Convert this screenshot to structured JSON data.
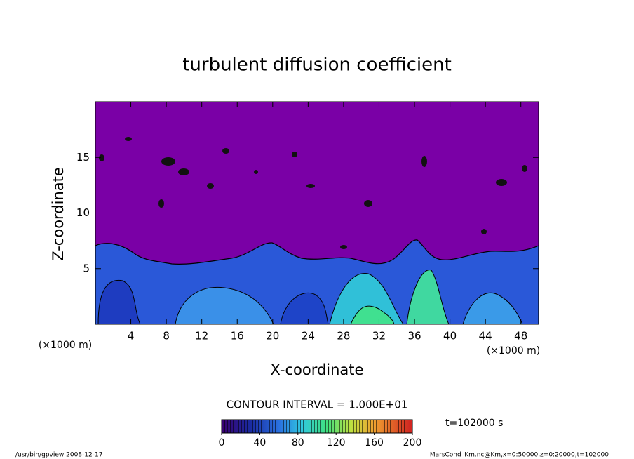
{
  "chart_data": {
    "type": "contour",
    "title": "turbulent diffusion coefficient",
    "x_label": "X-coordinate",
    "y_label": "Z-coordinate",
    "x_unit": "(×1000 m)",
    "y_unit": "(×1000 m)",
    "xlim": [
      0,
      50
    ],
    "xticks": [
      4,
      8,
      12,
      16,
      20,
      24,
      28,
      32,
      36,
      40,
      44,
      48
    ],
    "ylim": [
      0,
      20
    ],
    "yticks": [
      5,
      10,
      15
    ],
    "contour_interval": "CONTOUR INTERVAL = 1.000E+01",
    "time_label": "t=102000 s",
    "colorbar": {
      "lim": [
        0,
        200
      ],
      "ticks": [
        0,
        40,
        80,
        120,
        160,
        200
      ]
    },
    "footer_left": "/usr/bin/gpview   2008-12-17",
    "footer_right": "MarsCond_Km.nc@Km,x=0:50000,z=0:20000,t=102000"
  }
}
